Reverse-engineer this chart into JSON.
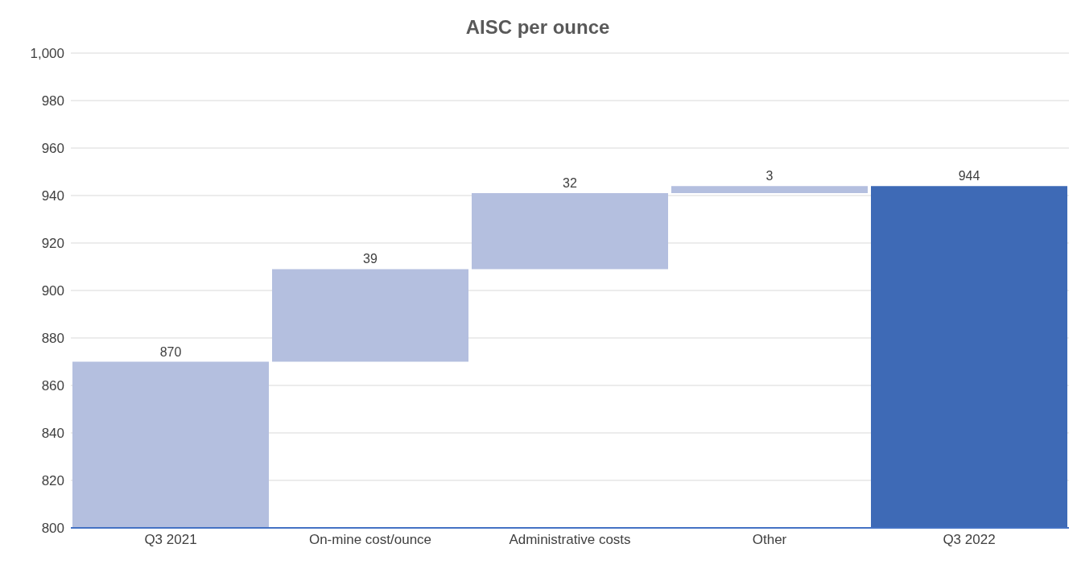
{
  "chart_data": {
    "type": "bar",
    "title": "AISC per ounce",
    "categories": [
      "Q3 2021",
      "On-mine cost/ounce",
      "Administrative costs",
      "Other",
      "Q3 2022"
    ],
    "values": [
      870,
      39,
      32,
      3,
      944
    ],
    "base": [
      0,
      870,
      909,
      941,
      0
    ],
    "colors": [
      "#b4bfdf",
      "#b4bfdf",
      "#b4bfdf",
      "#b4bfdf",
      "#3e6ab6"
    ],
    "ylim": [
      800,
      1000
    ],
    "yticks": [
      800,
      820,
      840,
      860,
      880,
      900,
      920,
      940,
      960,
      980,
      {
        "value": 1000,
        "label": "1,000"
      }
    ],
    "grid": "y",
    "data_labels": true
  }
}
